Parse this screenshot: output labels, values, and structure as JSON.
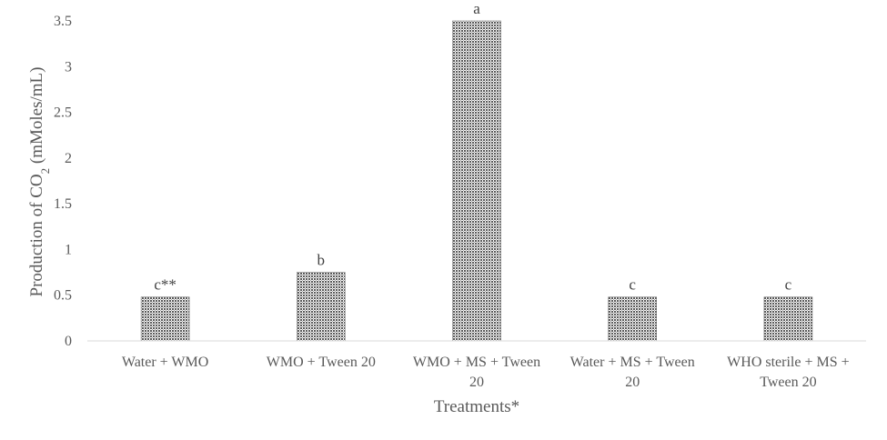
{
  "chart_data": {
    "type": "bar",
    "title": "",
    "xlabel": "Treatments*",
    "ylabel": {
      "prefix": "Production of CO",
      "subscript": "2",
      "suffix": " (mMoles/mL)"
    },
    "ylim": [
      0,
      3.5
    ],
    "yticks": [
      "0",
      "0.5",
      "1",
      "1.5",
      "2",
      "2.5",
      "3",
      "3.5"
    ],
    "grid": false,
    "legend": "none",
    "bar_color": "#8a8a8a",
    "categories": [
      {
        "line1": "Water + WMO",
        "line2": ""
      },
      {
        "line1": "WMO + Tween 20",
        "line2": ""
      },
      {
        "line1": "WMO + MS + Tween",
        "line2": "20"
      },
      {
        "line1": "Water + MS + Tween",
        "line2": "20"
      },
      {
        "line1": "WHO sterile + MS +",
        "line2": "Tween 20"
      }
    ],
    "values": [
      0.48,
      0.75,
      3.5,
      0.48,
      0.48
    ],
    "data_labels": [
      "c**",
      "b",
      "a",
      "c",
      "c"
    ]
  }
}
